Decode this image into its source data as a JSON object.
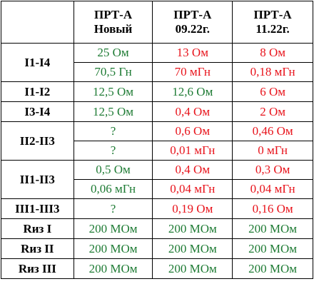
{
  "colors": {
    "good": "#1e7b34",
    "bad": "#e8131b",
    "text": "#000000",
    "border": "#000000"
  },
  "header": {
    "corner": "",
    "columns": [
      {
        "line1": "ПРТ-А",
        "line2": "Новый"
      },
      {
        "line1": "ПРТ-А",
        "line2": "09.22г."
      },
      {
        "line1": "ПРТ-А",
        "line2": "11.22г."
      }
    ]
  },
  "rows": [
    {
      "label": "I1-I4",
      "sub": [
        {
          "values": [
            "25 Ом",
            "13 Ом",
            "8 Ом"
          ],
          "status": [
            "good",
            "bad",
            "bad"
          ]
        },
        {
          "values": [
            "70,5 Гн",
            "70 мГн",
            "0,18 мГн"
          ],
          "status": [
            "good",
            "bad",
            "bad"
          ]
        }
      ]
    },
    {
      "label": "I1-I2",
      "sub": [
        {
          "values": [
            "12,5 Ом",
            "12,6 Ом",
            "6 Ом"
          ],
          "status": [
            "good",
            "good",
            "bad"
          ]
        }
      ]
    },
    {
      "label": "I3-I4",
      "sub": [
        {
          "values": [
            "12,5 Ом",
            "0,4 Ом",
            "2 Ом"
          ],
          "status": [
            "good",
            "bad",
            "bad"
          ]
        }
      ]
    },
    {
      "label": "II2-II3",
      "sub": [
        {
          "values": [
            "?",
            "0,6 Ом",
            "0,46 Ом"
          ],
          "status": [
            "good",
            "bad",
            "bad"
          ]
        },
        {
          "values": [
            "?",
            "0,01 мГн",
            "0 мГн"
          ],
          "status": [
            "good",
            "bad",
            "bad"
          ]
        }
      ]
    },
    {
      "label": "II1-II3",
      "sub": [
        {
          "values": [
            "0,5 Ом",
            "0,4 Ом",
            "0,3 Ом"
          ],
          "status": [
            "good",
            "bad",
            "bad"
          ]
        },
        {
          "values": [
            "0,06 мГн",
            "0,04 мГн",
            "0,04 мГн"
          ],
          "status": [
            "good",
            "bad",
            "bad"
          ]
        }
      ]
    },
    {
      "label": "III1-III3",
      "sub": [
        {
          "values": [
            "?",
            "0,19 Ом",
            "0,16 Ом"
          ],
          "status": [
            "good",
            "bad",
            "bad"
          ]
        }
      ]
    },
    {
      "label": "Rиз I",
      "sub": [
        {
          "values": [
            "200 МОм",
            "200 МОм",
            "200 МОм"
          ],
          "status": [
            "good",
            "good",
            "good"
          ]
        }
      ]
    },
    {
      "label": "Rиз II",
      "sub": [
        {
          "values": [
            "200 МОм",
            "200 МОм",
            "200 МОм"
          ],
          "status": [
            "good",
            "good",
            "good"
          ]
        }
      ]
    },
    {
      "label": "Rиз III",
      "sub": [
        {
          "values": [
            "200 МОм",
            "200 МОм",
            "200 МОм"
          ],
          "status": [
            "good",
            "good",
            "good"
          ]
        }
      ]
    }
  ]
}
